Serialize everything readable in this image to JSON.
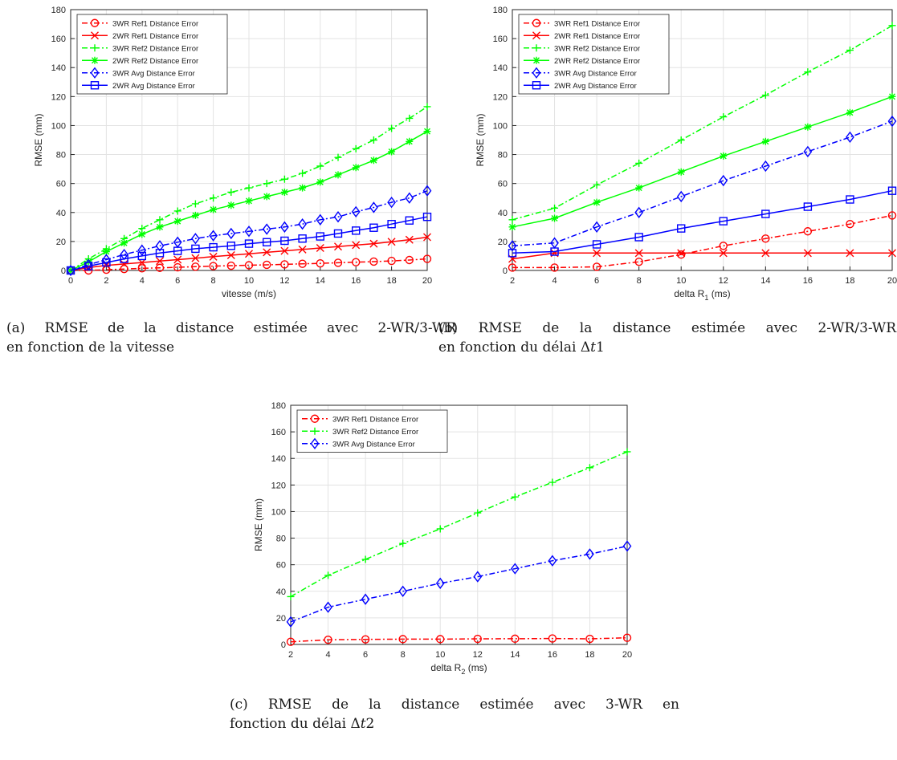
{
  "charts": [
    {
      "id": "a",
      "caption": {
        "line1": "(a) RMSE de la distance estimée avec 2-WR/3-WR",
        "line2": "en fonction de la vitesse"
      },
      "chart_data": {
        "type": "line",
        "xlabel": "vitesse (m/s)",
        "ylabel": "RMSE (mm)",
        "xlim": [
          0,
          20
        ],
        "ylim": [
          0,
          180
        ],
        "xticks": [
          0,
          2,
          4,
          6,
          8,
          10,
          12,
          14,
          16,
          18,
          20
        ],
        "yticks": [
          0,
          20,
          40,
          60,
          80,
          100,
          120,
          140,
          160,
          180
        ],
        "grid": true,
        "legend_position": "top-left",
        "x": [
          0,
          1,
          2,
          3,
          4,
          5,
          6,
          7,
          8,
          9,
          10,
          11,
          12,
          13,
          14,
          15,
          16,
          17,
          18,
          19,
          20
        ],
        "series": [
          {
            "name": "3WR Ref1 Distance Error",
            "color": "#ff0000",
            "dash": "dashdot",
            "marker": "circle",
            "values": [
              0,
              0,
              0.5,
              1,
              1.5,
              1.8,
              2.2,
              2.6,
              3,
              3.3,
              3.6,
              3.9,
              4.2,
              4.6,
              4.9,
              5.3,
              5.7,
              6.1,
              6.6,
              7.2,
              8
            ]
          },
          {
            "name": "2WR Ref1 Distance Error",
            "color": "#ff0000",
            "dash": "solid",
            "marker": "x",
            "values": [
              0,
              2,
              3.5,
              4.5,
              5.5,
              6.5,
              7.5,
              8.5,
              9.5,
              10.5,
              11.5,
              12.5,
              13.5,
              14.5,
              15.5,
              16.5,
              17.5,
              18.5,
              19.8,
              21.2,
              23
            ]
          },
          {
            "name": "3WR Ref2 Distance Error",
            "color": "#00ff00",
            "dash": "dashdot",
            "marker": "plus",
            "values": [
              0,
              8,
              15,
              22,
              29,
              35,
              41,
              46,
              50,
              54,
              57,
              60,
              63,
              67,
              72,
              78,
              84,
              90,
              98,
              105,
              113
            ]
          },
          {
            "name": "2WR Ref2 Distance Error",
            "color": "#00ff00",
            "dash": "solid",
            "marker": "asterisk",
            "values": [
              0,
              6,
              13,
              19,
              25,
              30,
              34,
              38,
              42,
              45,
              48,
              51,
              54,
              57,
              61,
              66,
              71,
              76,
              82,
              89,
              96
            ]
          },
          {
            "name": "3WR Avg Distance Error",
            "color": "#0000ff",
            "dash": "dashdot",
            "marker": "diamond",
            "values": [
              0,
              4,
              7.5,
              11,
              14,
              17,
              19.5,
              22,
              24,
              25.5,
              27,
              28.5,
              30,
              32,
              35,
              37,
              40.5,
              43.5,
              47,
              50,
              55
            ]
          },
          {
            "name": "2WR Avg Distance Error",
            "color": "#0000ff",
            "dash": "solid",
            "marker": "square",
            "values": [
              0,
              3,
              5.5,
              8,
              10,
              12,
              13.5,
              15,
              16,
              17,
              18.5,
              19.5,
              20.5,
              22,
              23.5,
              25.5,
              27.5,
              29.5,
              32,
              34.5,
              37
            ]
          }
        ]
      }
    },
    {
      "id": "b",
      "caption": {
        "line1": "(b) RMSE de la distance estimée avec 2-WR/3-WR",
        "line2": "en fonction du délai Δ𝑡1"
      },
      "chart_data": {
        "type": "line",
        "xlabel": "delta R",
        "xlabel_sub": "1",
        "xlabel_suffix": " (ms)",
        "ylabel": "RMSE (mm)",
        "xlim": [
          2,
          20
        ],
        "ylim": [
          0,
          180
        ],
        "xticks": [
          2,
          4,
          6,
          8,
          10,
          12,
          14,
          16,
          18,
          20
        ],
        "yticks": [
          0,
          20,
          40,
          60,
          80,
          100,
          120,
          140,
          160,
          180
        ],
        "grid": true,
        "legend_position": "top-left",
        "x": [
          2,
          4,
          6,
          8,
          10,
          12,
          14,
          16,
          18,
          20
        ],
        "series": [
          {
            "name": "3WR Ref1 Distance Error",
            "color": "#ff0000",
            "dash": "dashdot",
            "marker": "circle",
            "values": [
              2,
              2,
              2.5,
              6,
              11,
              17,
              22,
              27,
              32,
              38
            ]
          },
          {
            "name": "2WR Ref1 Distance Error",
            "color": "#ff0000",
            "dash": "solid",
            "marker": "x",
            "values": [
              8,
              12,
              12,
              12,
              12,
              12,
              12,
              12,
              12,
              12
            ]
          },
          {
            "name": "3WR Ref2 Distance Error",
            "color": "#00ff00",
            "dash": "dashdot",
            "marker": "plus",
            "values": [
              35,
              43,
              59,
              74,
              90,
              106,
              121,
              137,
              152,
              169
            ]
          },
          {
            "name": "2WR Ref2 Distance Error",
            "color": "#00ff00",
            "dash": "solid",
            "marker": "asterisk",
            "values": [
              30,
              36,
              47,
              57,
              68,
              79,
              89,
              99,
              109,
              120
            ]
          },
          {
            "name": "3WR Avg Distance Error",
            "color": "#0000ff",
            "dash": "dashdot",
            "marker": "diamond",
            "values": [
              17,
              19,
              30,
              40,
              51,
              62,
              72,
              82,
              92,
              103
            ]
          },
          {
            "name": "2WR Avg Distance Error",
            "color": "#0000ff",
            "dash": "solid",
            "marker": "square",
            "values": [
              12,
              13,
              18,
              23,
              29,
              34,
              39,
              44,
              49,
              55
            ]
          }
        ]
      }
    },
    {
      "id": "c",
      "caption": {
        "line1": "(c) RMSE de la distance estimée avec 3-WR en",
        "line2": "fonction du délai Δ𝑡2"
      },
      "chart_data": {
        "type": "line",
        "xlabel": "delta R",
        "xlabel_sub": "2",
        "xlabel_suffix": " (ms)",
        "ylabel": "RMSE (mm)",
        "xlim": [
          2,
          20
        ],
        "ylim": [
          0,
          180
        ],
        "xticks": [
          2,
          4,
          6,
          8,
          10,
          12,
          14,
          16,
          18,
          20
        ],
        "yticks": [
          0,
          20,
          40,
          60,
          80,
          100,
          120,
          140,
          160,
          180
        ],
        "grid": true,
        "legend_position": "top-left",
        "x": [
          2,
          4,
          6,
          8,
          10,
          12,
          14,
          16,
          18,
          20
        ],
        "series": [
          {
            "name": "3WR Ref1 Distance Error",
            "color": "#ff0000",
            "dash": "dashdot",
            "marker": "circle",
            "values": [
              2,
              3.5,
              3.8,
              4,
              4,
              4.2,
              4.3,
              4.5,
              4.2,
              5
            ]
          },
          {
            "name": "3WR Ref2 Distance Error",
            "color": "#00ff00",
            "dash": "dashdot",
            "marker": "plus",
            "values": [
              36,
              52,
              64,
              76,
              87,
              99,
              111,
              122,
              133,
              145
            ]
          },
          {
            "name": "3WR Avg Distance Error",
            "color": "#0000ff",
            "dash": "dashdot",
            "marker": "diamond",
            "values": [
              17,
              28,
              34,
              40,
              46,
              51,
              57,
              63,
              68,
              74
            ]
          }
        ]
      }
    }
  ]
}
